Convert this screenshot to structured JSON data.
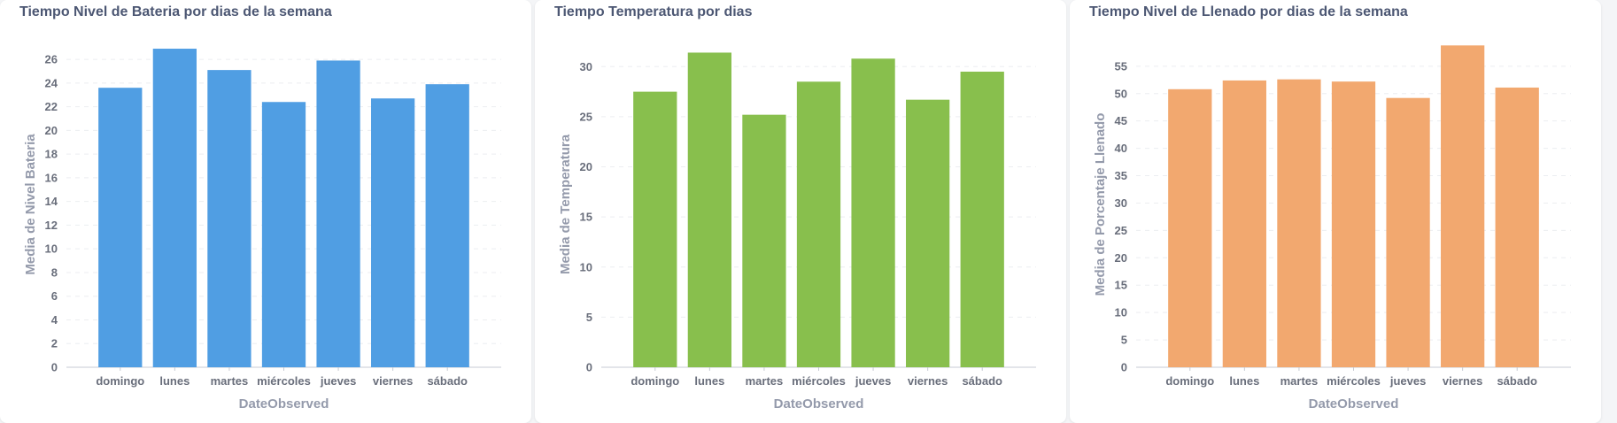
{
  "chart_data": [
    {
      "type": "bar",
      "title": "Tiempo Nivel de Bateria por dias de la semana",
      "xlabel": "DateObserved",
      "ylabel": "Media de Nivel Bateria",
      "categories": [
        "domingo",
        "lunes",
        "martes",
        "miércoles",
        "jueves",
        "viernes",
        "sábado"
      ],
      "values": [
        23.6,
        26.9,
        25.1,
        22.4,
        25.9,
        22.7,
        23.9
      ],
      "ylim": [
        0,
        27.5
      ],
      "yticks": [
        0,
        2,
        4,
        6,
        8,
        10,
        12,
        14,
        16,
        18,
        20,
        22,
        24,
        26
      ],
      "color": "#509ee3",
      "grid": true
    },
    {
      "type": "bar",
      "title": "Tiempo Temperatura por dias",
      "xlabel": "DateObserved",
      "ylabel": "Media de Temperatura",
      "categories": [
        "domingo",
        "lunes",
        "martes",
        "miércoles",
        "jueves",
        "viernes",
        "sábado"
      ],
      "values": [
        27.5,
        31.4,
        25.2,
        28.5,
        30.8,
        26.7,
        29.5
      ],
      "ylim": [
        0,
        32.5
      ],
      "yticks": [
        0,
        5,
        10,
        15,
        20,
        25,
        30
      ],
      "color": "#88bf4d",
      "grid": true
    },
    {
      "type": "bar",
      "title": "Tiempo Nivel de Llenado por dias de la semana",
      "xlabel": "DateObserved",
      "ylabel": "Media de Porcentaje Llenado",
      "categories": [
        "domingo",
        "lunes",
        "martes",
        "miércoles",
        "jueves",
        "viernes",
        "sábado"
      ],
      "values": [
        50.8,
        52.4,
        52.6,
        52.2,
        49.2,
        58.8,
        51.1
      ],
      "ylim": [
        0,
        59.5
      ],
      "yticks": [
        0,
        5,
        10,
        15,
        20,
        25,
        30,
        35,
        40,
        45,
        50,
        55
      ],
      "color": "#f2a86f",
      "grid": true
    }
  ]
}
